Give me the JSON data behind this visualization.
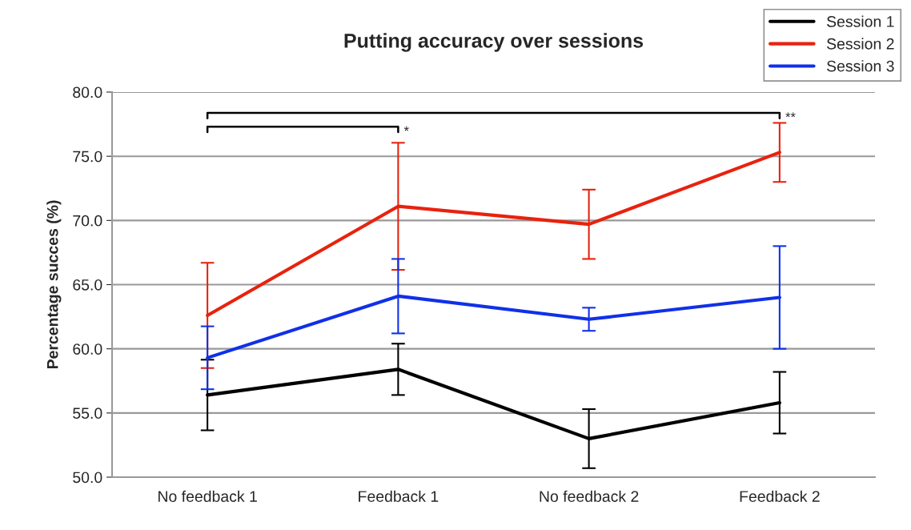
{
  "chart_data": {
    "type": "line",
    "title": "Putting accuracy over sessions",
    "ylabel": "Percentage succes (%)",
    "categories": [
      "No feedback 1",
      "Feedback 1",
      "No feedback 2",
      "Feedback 2"
    ],
    "series": [
      {
        "name": "Session 1",
        "color": "#000000",
        "values": [
          56.4,
          58.4,
          53.0,
          55.8
        ],
        "errors": [
          2.75,
          2.0,
          2.3,
          2.4
        ]
      },
      {
        "name": "Session 2",
        "color": "#e8220e",
        "values": [
          62.6,
          71.1,
          69.7,
          75.3
        ],
        "errors": [
          4.1,
          4.95,
          2.7,
          2.3
        ]
      },
      {
        "name": "Session 3",
        "color": "#1030e8",
        "values": [
          59.3,
          64.1,
          62.3,
          64.0
        ],
        "errors": [
          2.45,
          2.9,
          0.9,
          4.0
        ]
      }
    ],
    "ylim": [
      50,
      80
    ],
    "yticks": [
      {
        "value": 50,
        "label": "50.0"
      },
      {
        "value": 55,
        "label": "55.0"
      },
      {
        "value": 60,
        "label": "60.0"
      },
      {
        "value": 65,
        "label": "65.0"
      },
      {
        "value": 70,
        "label": "70.0"
      },
      {
        "value": 75,
        "label": "75.0"
      },
      {
        "value": 80,
        "label": "80.0"
      }
    ],
    "grid": "y",
    "legend": "top right",
    "marker": "none",
    "line_style": "solid",
    "annotations": [
      "*",
      "**"
    ]
  }
}
